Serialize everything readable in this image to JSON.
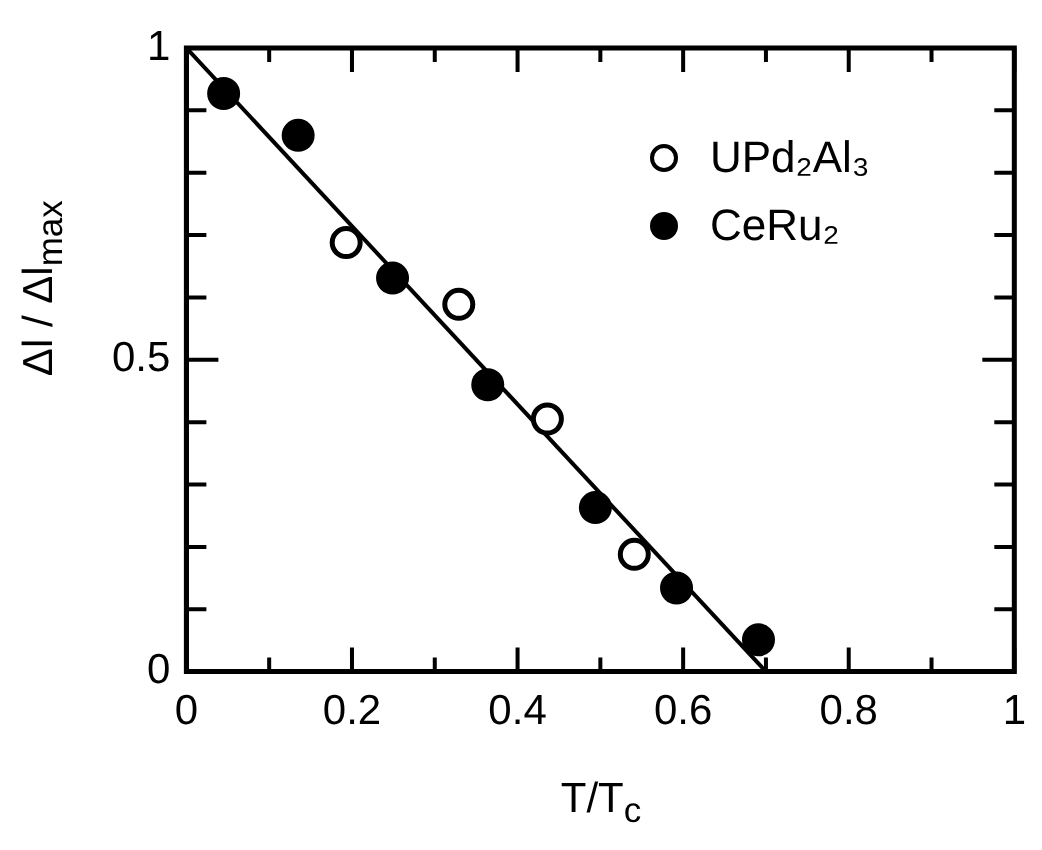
{
  "chart_data": {
    "type": "scatter",
    "xlabel": "T/T$_{c}$",
    "ylabel": "Δl / Δl$_{max}$",
    "xlim": [
      0,
      1
    ],
    "ylim": [
      0,
      1
    ],
    "xticks": [
      0,
      {
        "value": 0.1,
        "label": null
      },
      0.2,
      {
        "value": 0.3,
        "label": null
      },
      0.4,
      {
        "value": 0.5,
        "label": null
      },
      0.6,
      {
        "value": 0.7,
        "label": null
      },
      0.8,
      {
        "value": 0.9,
        "label": null
      },
      1
    ],
    "yticks": [
      0,
      {
        "value": 0.1,
        "label": null
      },
      {
        "value": 0.2,
        "label": null
      },
      {
        "value": 0.3,
        "label": null
      },
      {
        "value": 0.4,
        "label": null
      },
      0.5,
      {
        "value": 0.6,
        "label": null
      },
      {
        "value": 0.7,
        "label": null
      },
      {
        "value": 0.8,
        "label": null
      },
      {
        "value": 0.9,
        "label": null
      },
      1
    ],
    "grid": false,
    "legend": "top right",
    "marker": "circle",
    "series": [
      {
        "name": "UPd₂Al₃",
        "color": "#000000",
        "x": [
          0.193,
          0.329,
          0.436,
          0.541
        ],
        "values": [
          0.688,
          0.589,
          0.405,
          0.188
        ]
      },
      {
        "name": "CeRu₂",
        "color": "#000000",
        "x": [
          0.045,
          0.135,
          0.249,
          0.364,
          0.494,
          0.592,
          0.691
        ],
        "values": [
          0.927,
          0.86,
          0.631,
          0.46,
          0.263,
          0.134,
          0.051
        ]
      },
      {
        "type": "line",
        "color": "#000000",
        "marker": "none",
        "line_style": "solid",
        "x": [
          0,
          0.7
        ],
        "values": [
          1,
          0
        ]
      }
    ]
  }
}
